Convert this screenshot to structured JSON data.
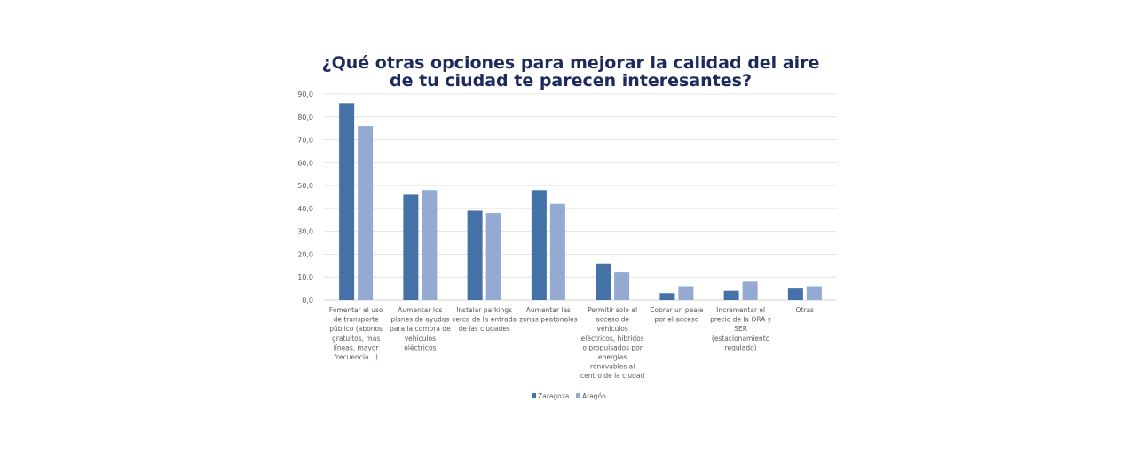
{
  "chart_data": {
    "type": "bar",
    "title": [
      "¿Qué otras opciones para mejorar la calidad del aire",
      "de tu ciudad te parecen interesantes?"
    ],
    "xlabel": "",
    "ylabel": "",
    "ylim": [
      0,
      90
    ],
    "yticks": [
      "0,0",
      "10,0",
      "20,0",
      "30,0",
      "40,0",
      "50,0",
      "60,0",
      "70,0",
      "80,0",
      "90,0"
    ],
    "grid": true,
    "legend_placement": "bottom",
    "categories": [
      [
        "Fomentar el uso",
        "de transporte",
        "público (abonos",
        "gratuitos, más",
        "líneas, mayor",
        "frecuencia…)"
      ],
      [
        "Aumentar los",
        "planes de ayudas",
        "para la compra de",
        "vehículos",
        "eléctricos"
      ],
      [
        "Instalar parkings",
        "cerca de la entrada",
        "de las ciudades"
      ],
      [
        "Aumentar las",
        "zonas peatonales"
      ],
      [
        "Permitir solo el",
        "acceso de",
        "vehículos",
        "eléctricos, híbridos",
        "o propulsados por",
        "energías",
        "renovables al",
        "centro de la ciudad"
      ],
      [
        "Cobrar un peaje",
        "por el acceso"
      ],
      [
        "Incrementar el",
        "precio de la ORA y",
        "SER",
        "(estacionamiento",
        "regulado)"
      ],
      [
        "Otras"
      ]
    ],
    "series": [
      {
        "name": "Zaragoza",
        "color": "#4472a8",
        "values": [
          86,
          46,
          39,
          48,
          16,
          3,
          4,
          5
        ]
      },
      {
        "name": "Aragón",
        "color": "#94aad2",
        "values": [
          76,
          48,
          38,
          42,
          12,
          6,
          8,
          6
        ]
      }
    ]
  }
}
